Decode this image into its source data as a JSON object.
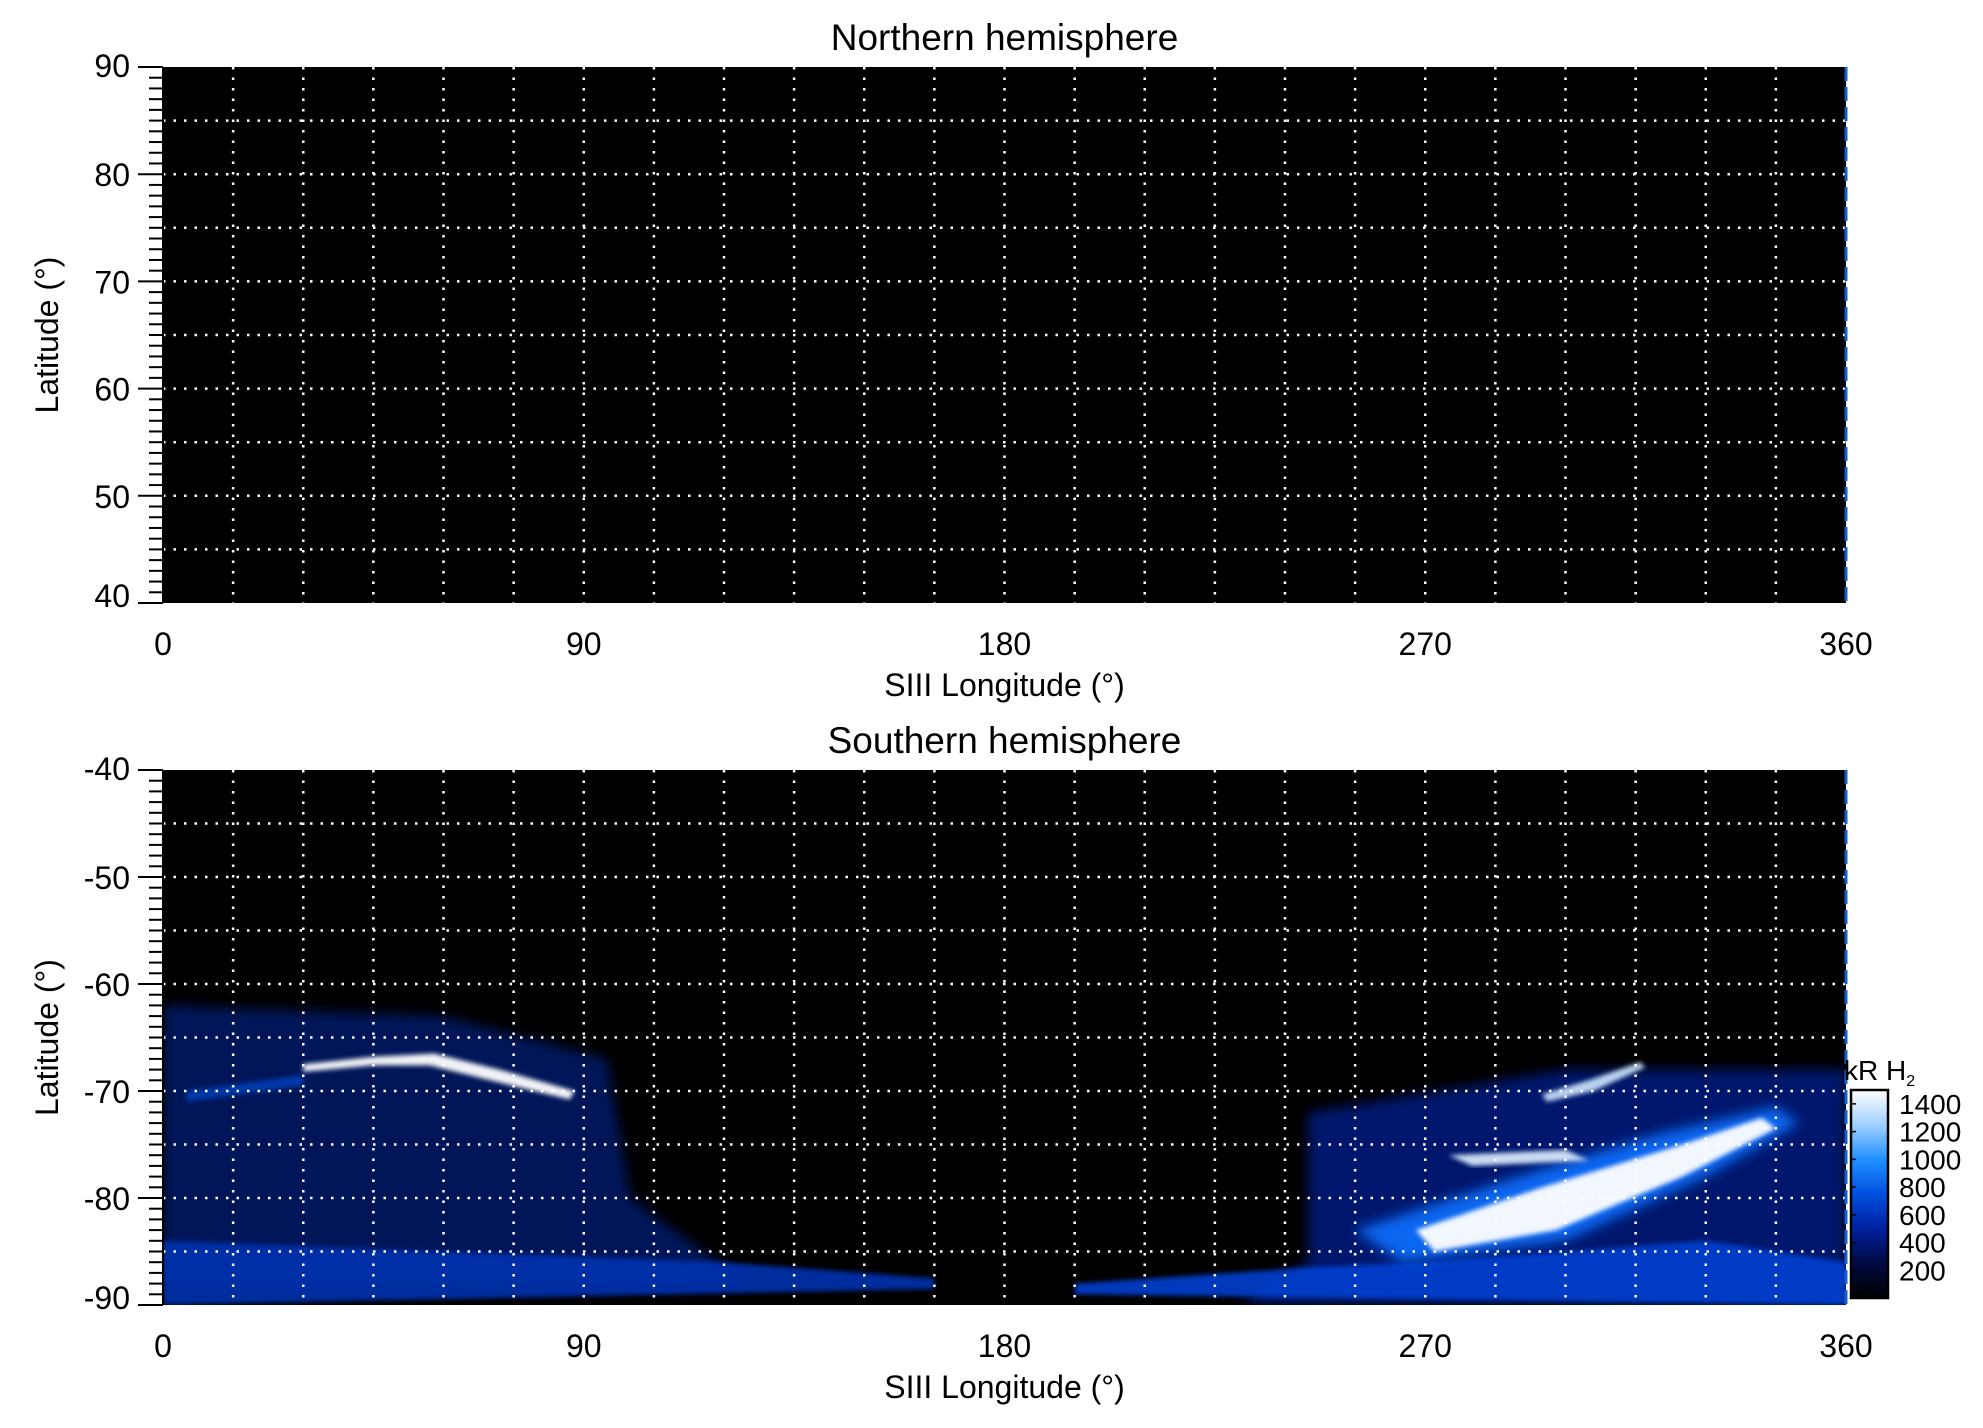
{
  "chart_data": [
    {
      "type": "heatmap",
      "title": "Northern hemisphere",
      "xlabel": "SIII Longitude (°)",
      "ylabel": "Latitude (°)",
      "xlim": [
        0,
        360
      ],
      "ylim": [
        40,
        90
      ],
      "xticks": [
        "0",
        "90",
        "180",
        "270",
        "360"
      ],
      "yticks": [
        "90",
        "80",
        "70",
        "60",
        "50",
        "40"
      ],
      "grid": true,
      "grid_style": "dotted white",
      "x_grid_step": 15,
      "y_grid_step": 5,
      "background": "#000000"
    },
    {
      "type": "heatmap",
      "title": "Southern hemisphere",
      "xlabel": "SIII Longitude (°)",
      "ylabel": "Latitude (°)",
      "xlim": [
        0,
        360
      ],
      "ylim": [
        -90,
        -40
      ],
      "xticks": [
        "0",
        "90",
        "180",
        "270",
        "360"
      ],
      "yticks": [
        "-40",
        "-50",
        "-60",
        "-70",
        "-80",
        "-90"
      ],
      "grid": true,
      "grid_style": "dotted white",
      "x_grid_step": 15,
      "y_grid_step": 5,
      "colorbar": {
        "label": "kR H",
        "label_sub": "2",
        "range": [
          0,
          1500
        ],
        "ticks": [
          "1400",
          "1200",
          "1000",
          "800",
          "600",
          "400",
          "200"
        ],
        "colors": [
          "#000000",
          "#000a40",
          "#0020a0",
          "#0050e0",
          "#2090ff",
          "#a0d0ff",
          "#ffffff"
        ]
      }
    }
  ]
}
